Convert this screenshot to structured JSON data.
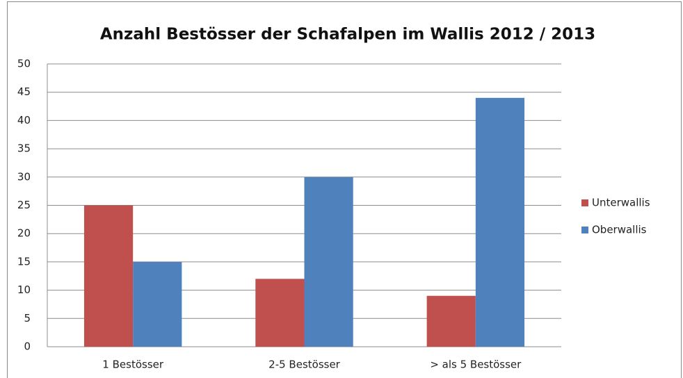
{
  "chart_data": {
    "type": "bar",
    "title": "Anzahl Bestösser der Schafalpen im Wallis  2012 / 2013",
    "categories": [
      "1 Bestösser",
      "2-5 Bestösser",
      "> als 5 Bestösser"
    ],
    "series": [
      {
        "name": "Unterwallis",
        "color": "#c0504d",
        "values": [
          25,
          12,
          9
        ]
      },
      {
        "name": "Oberwallis",
        "color": "#4f81bd",
        "values": [
          15,
          30,
          44
        ]
      }
    ],
    "ylim": [
      0,
      50
    ],
    "yticks": [
      0,
      5,
      10,
      15,
      20,
      25,
      30,
      35,
      40,
      45,
      50
    ],
    "grid": true,
    "legend": "right"
  }
}
